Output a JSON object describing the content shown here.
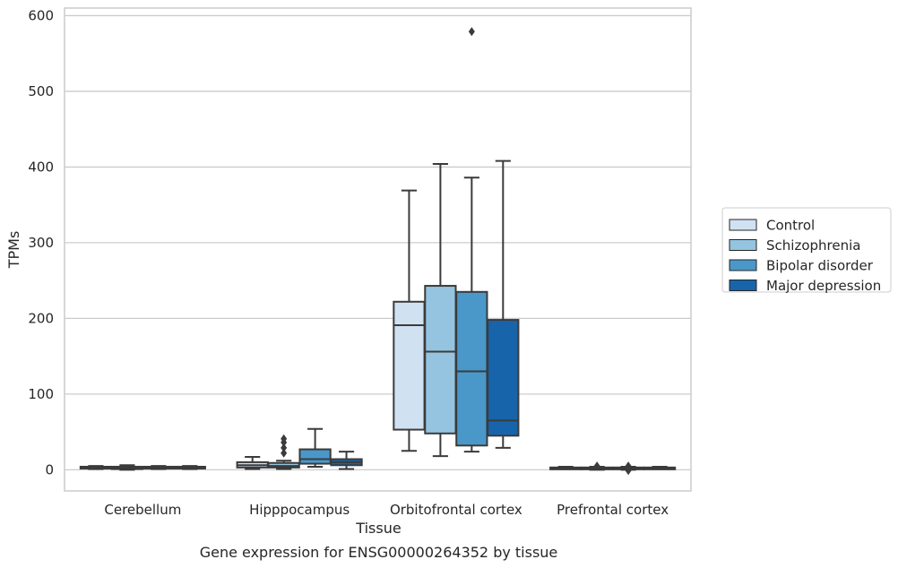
{
  "chart_data": {
    "type": "box",
    "title": "",
    "caption": "Gene expression for ENSG00000264352 by tissue",
    "xlabel": "Tissue",
    "ylabel": "TPMs",
    "ylim": [
      -28,
      610
    ],
    "yticks": [
      0,
      100,
      200,
      300,
      400,
      500,
      600
    ],
    "grid": "horizontal",
    "legend_position": "right",
    "categories": [
      "Cerebellum",
      "Hipppocampus",
      "Orbitofrontal cortex",
      "Prefrontal cortex"
    ],
    "series": [
      {
        "name": "Control",
        "color": "#d0e1f2",
        "boxes": [
          {
            "min": 1,
            "q1": 2,
            "median": 3,
            "q3": 4,
            "max": 5,
            "outliers": []
          },
          {
            "min": 1,
            "q1": 3,
            "median": 6,
            "q3": 10,
            "max": 17,
            "outliers": []
          },
          {
            "min": 25,
            "q1": 53,
            "median": 191,
            "q3": 222,
            "max": 369,
            "outliers": []
          },
          {
            "min": 1,
            "q1": 2,
            "median": 2,
            "q3": 3,
            "max": 4,
            "outliers": []
          }
        ]
      },
      {
        "name": "Schizophrenia",
        "color": "#94c4df",
        "boxes": [
          {
            "min": 0,
            "q1": 1,
            "median": 2,
            "q3": 4,
            "max": 6,
            "outliers": []
          },
          {
            "min": 1,
            "q1": 3,
            "median": 5,
            "q3": 9,
            "max": 12,
            "outliers": [
              22,
              29,
              36,
              41
            ]
          },
          {
            "min": 18,
            "q1": 48,
            "median": 156,
            "q3": 243,
            "max": 404,
            "outliers": []
          },
          {
            "min": 0,
            "q1": 1,
            "median": 2,
            "q3": 3,
            "max": 4,
            "outliers": [
              5
            ]
          }
        ]
      },
      {
        "name": "Bipolar disorder",
        "color": "#4a98c9",
        "boxes": [
          {
            "min": 1,
            "q1": 2,
            "median": 3,
            "q3": 4,
            "max": 5,
            "outliers": []
          },
          {
            "min": 4,
            "q1": 8,
            "median": 14,
            "q3": 27,
            "max": 54,
            "outliers": []
          },
          {
            "min": 24,
            "q1": 32,
            "median": 130,
            "q3": 235,
            "max": 386,
            "outliers": [
              579
            ]
          },
          {
            "min": 0,
            "q1": 1,
            "median": 2,
            "q3": 3,
            "max": 4,
            "outliers": [
              -1,
              5
            ]
          }
        ]
      },
      {
        "name": "Major depression",
        "color": "#1764ab",
        "boxes": [
          {
            "min": 1,
            "q1": 2,
            "median": 3,
            "q3": 4,
            "max": 5,
            "outliers": []
          },
          {
            "min": 1,
            "q1": 6,
            "median": 10,
            "q3": 14,
            "max": 24,
            "outliers": []
          },
          {
            "min": 29,
            "q1": 45,
            "median": 65,
            "q3": 198,
            "max": 408,
            "outliers": []
          },
          {
            "min": 1,
            "q1": 2,
            "median": 2,
            "q3": 3,
            "max": 4,
            "outliers": []
          }
        ]
      }
    ]
  }
}
